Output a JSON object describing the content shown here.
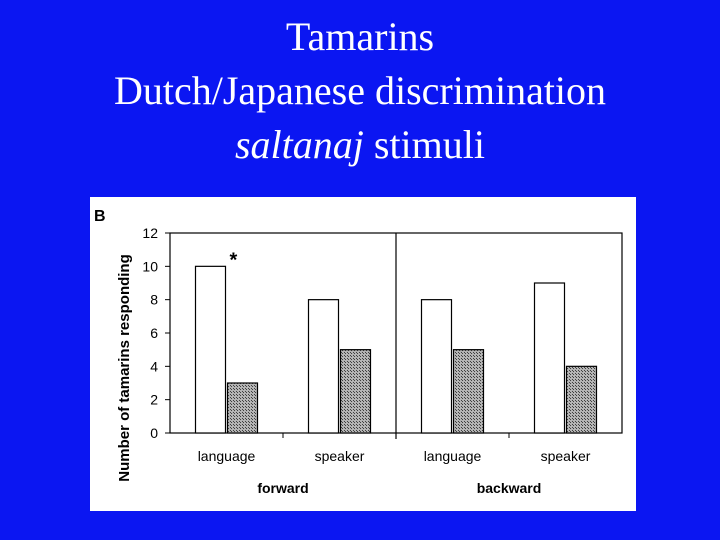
{
  "title": {
    "line1": "Tamarins",
    "line2": "Dutch/Japanese discrimination",
    "line3_italic": "saltanaj",
    "line3_rest": " stimuli"
  },
  "colors": {
    "background": "#0b16f2",
    "title_text": "#ffffff",
    "bar_white": "#ffffff",
    "bar_hatched": "#9a9a9a",
    "axis": "#000000"
  },
  "chart_data": {
    "type": "bar",
    "panel_label": "B",
    "ylabel": "Number of tamarins responding",
    "ylim": [
      0,
      12
    ],
    "yticks": [
      0,
      2,
      4,
      6,
      8,
      10,
      12
    ],
    "categories": [
      "language",
      "speaker",
      "language",
      "speaker"
    ],
    "groups": [
      "forward",
      "backward"
    ],
    "series": [
      {
        "style": "white",
        "values": [
          10,
          8,
          8,
          9
        ]
      },
      {
        "style": "hatched",
        "values": [
          3,
          5,
          5,
          4
        ]
      }
    ],
    "annotation": {
      "text": "*",
      "category_index": 0
    },
    "grid": false,
    "divider_between_groups": true
  }
}
